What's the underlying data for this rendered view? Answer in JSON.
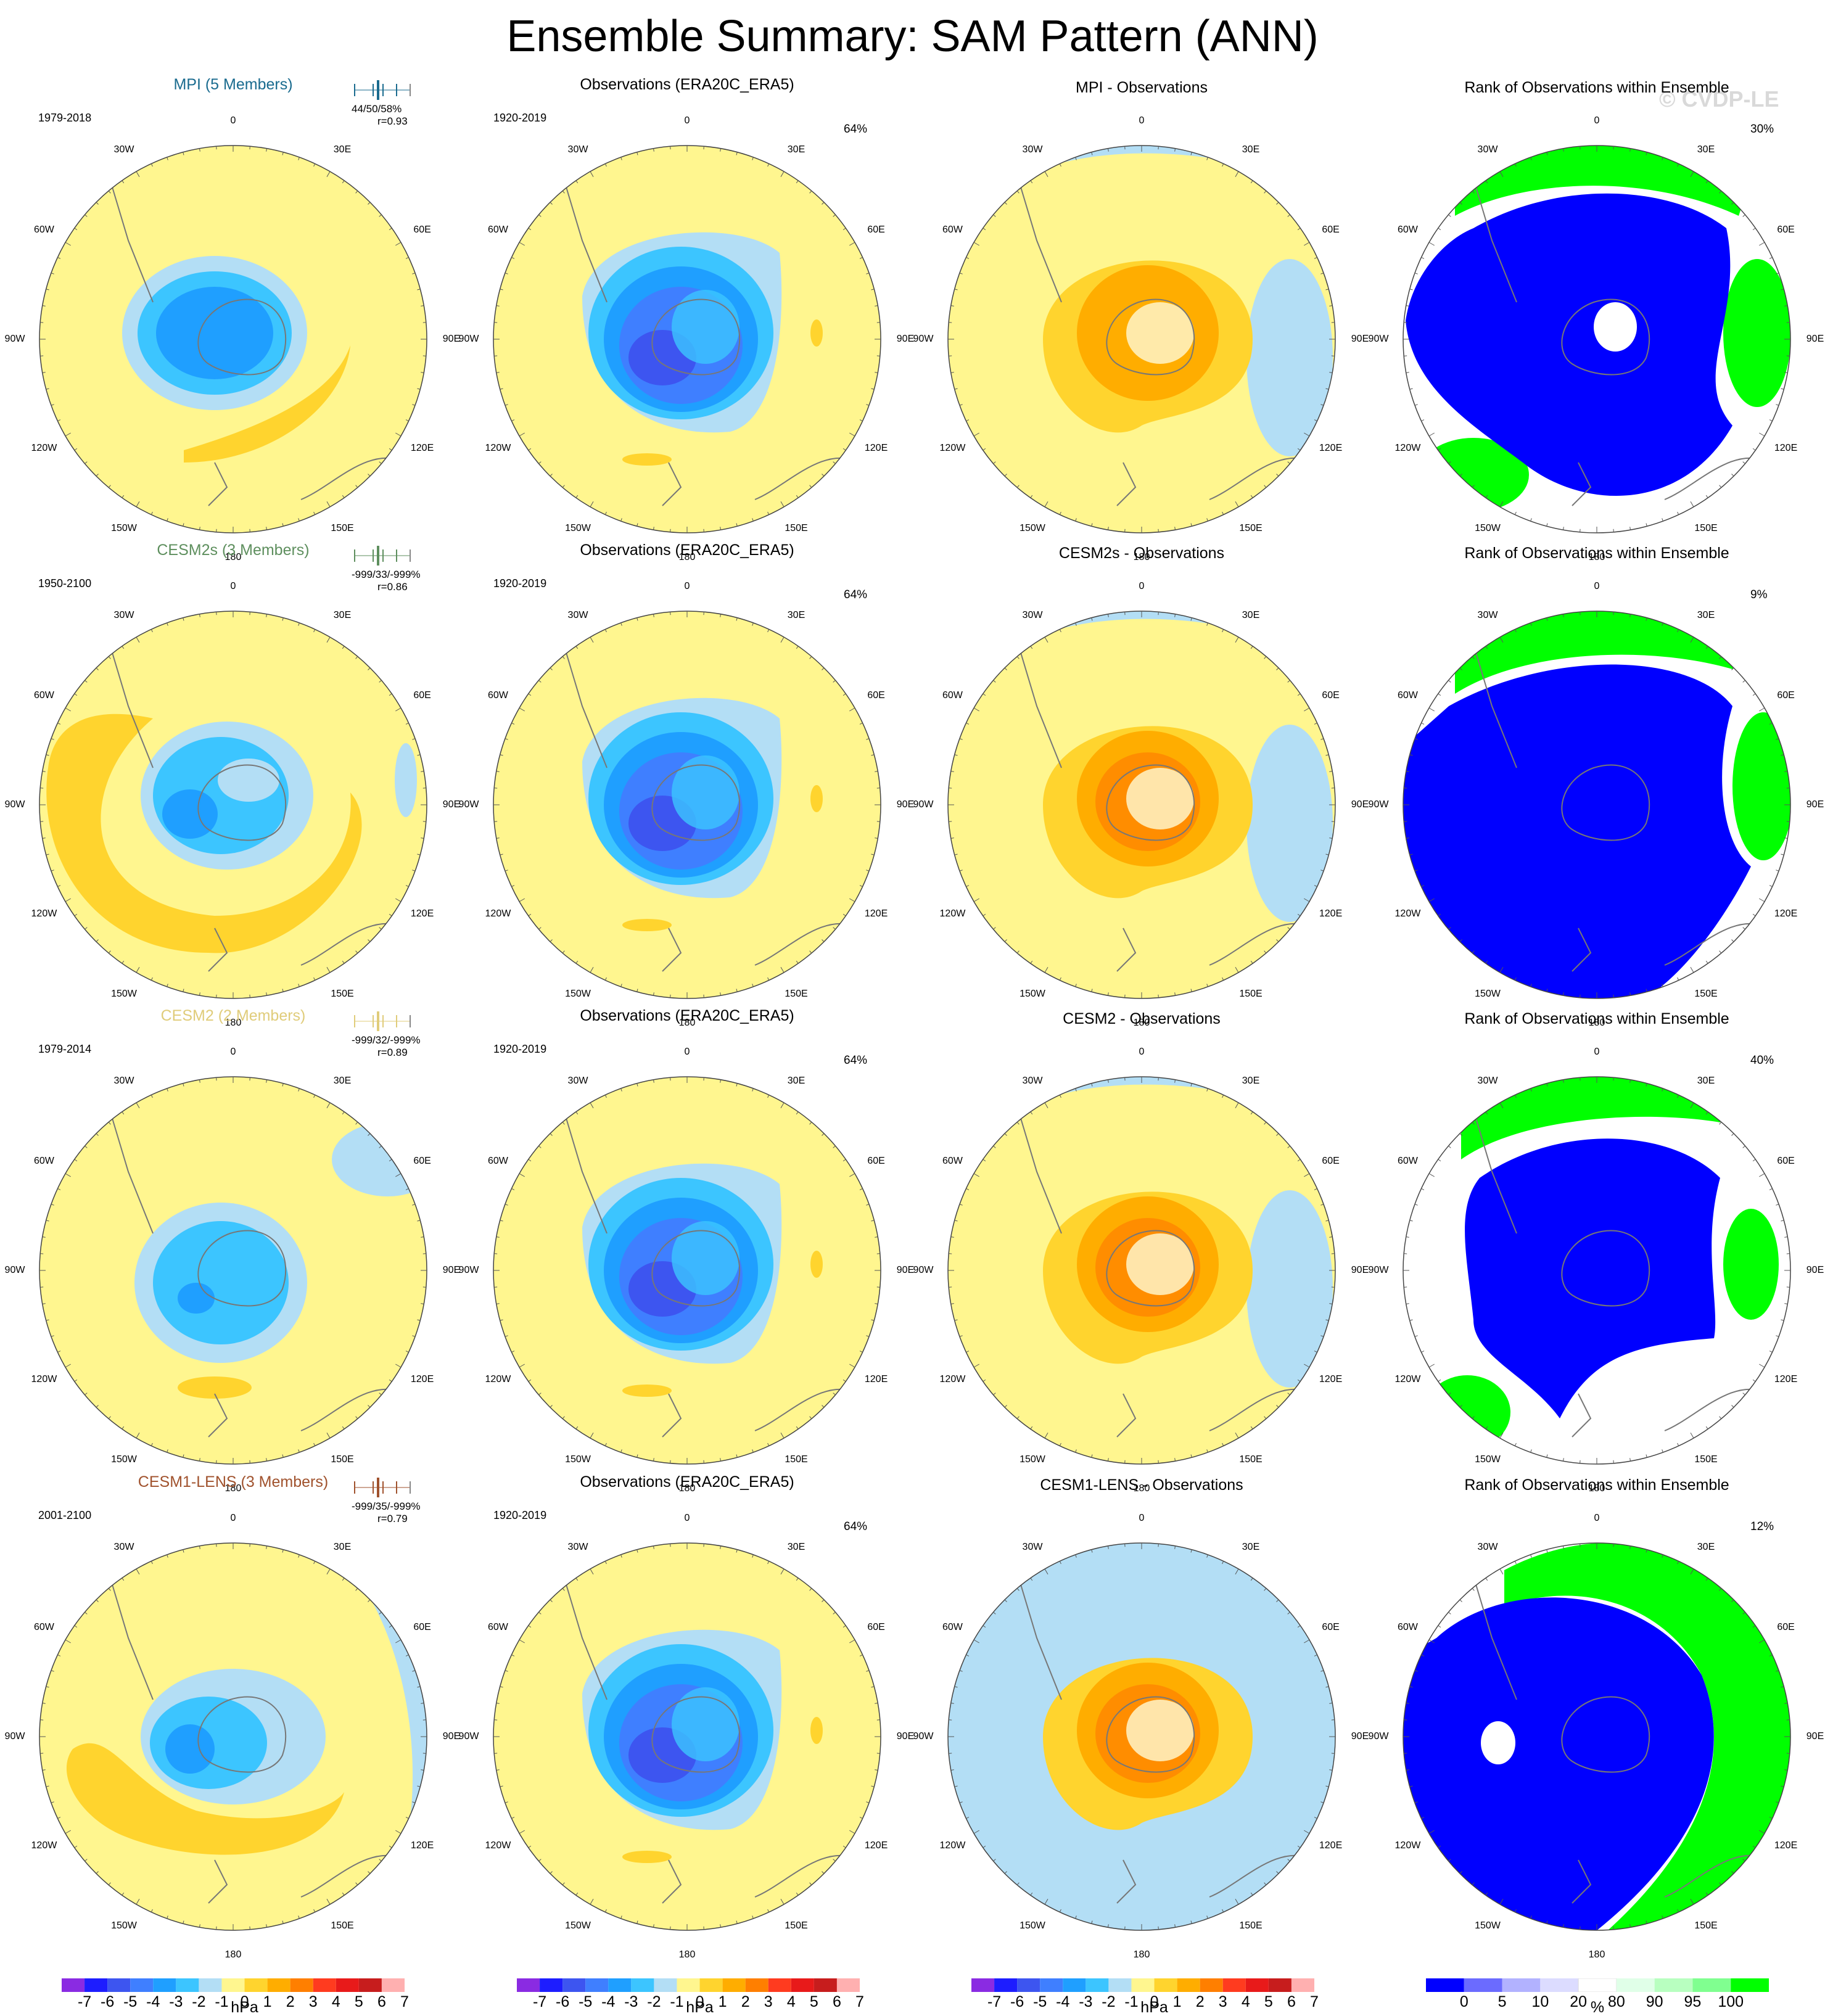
{
  "title": "Ensemble Summary: SAM Pattern (ANN)",
  "watermark": "© CVDP-LE",
  "colors": {
    "diverging": [
      "#8a2be2",
      "#1d1dff",
      "#3d55f0",
      "#3f7fff",
      "#1f9fff",
      "#3cc5ff",
      "#b3def5",
      "#fff68f",
      "#ffd42e",
      "#ffad00",
      "#ff7f00",
      "#ff3b1f",
      "#e81a1a",
      "#c71d1d",
      "#ffb0b0"
    ],
    "rank": [
      "#0000ff",
      "#6b6bff",
      "#b2b2ff",
      "#dcdcff",
      "#ffffff",
      "#e0ffe8",
      "#b8ffc0",
      "#80ff90",
      "#00ff00"
    ],
    "rows": [
      {
        "model_color": "#1a6b8f",
        "marker_color": "#1a6b8f"
      },
      {
        "model_color": "#5e8f5e",
        "marker_color": "#5e8f5e"
      },
      {
        "model_color": "#e0cc7a",
        "marker_color": "#e0cc7a"
      },
      {
        "model_color": "#a0522d",
        "marker_color": "#a0522d"
      }
    ]
  },
  "lon_labels": [
    "0",
    "30E",
    "60E",
    "90E",
    "120E",
    "150E",
    "180",
    "150W",
    "120W",
    "90W",
    "60W",
    "30W"
  ],
  "colorbars": {
    "hpa_ticks": [
      "-7",
      "-6",
      "-5",
      "-4",
      "-3",
      "-2",
      "-1",
      "0",
      "1",
      "2",
      "3",
      "4",
      "5",
      "6",
      "7"
    ],
    "hpa_unit": "hPa",
    "rank_ticks": [
      "0",
      "5",
      "10",
      "20",
      "80",
      "90",
      "95",
      "100"
    ],
    "rank_unit": "%"
  },
  "rows": [
    {
      "model_title": "MPI (5 Members)",
      "model_period": "1979-2018",
      "model_stats": "44/50/58%",
      "model_r": "r=0.93",
      "obs_title": "Observations (ERA20C_ERA5)",
      "obs_period": "1920-2019",
      "obs_pct": "64%",
      "diff_title": "MPI - Observations",
      "rank_title": "Rank of Observations within Ensemble",
      "rank_pct": "30%"
    },
    {
      "model_title": "CESM2s (3 Members)",
      "model_period": "1950-2100",
      "model_stats": "-999/33/-999%",
      "model_r": "r=0.86",
      "obs_title": "Observations (ERA20C_ERA5)",
      "obs_period": "1920-2019",
      "obs_pct": "64%",
      "diff_title": "CESM2s - Observations",
      "rank_title": "Rank of Observations within Ensemble",
      "rank_pct": "9%"
    },
    {
      "model_title": "CESM2 (2 Members)",
      "model_period": "1979-2014",
      "model_stats": "-999/32/-999%",
      "model_r": "r=0.89",
      "obs_title": "Observations (ERA20C_ERA5)",
      "obs_period": "1920-2019",
      "obs_pct": "64%",
      "diff_title": "CESM2 - Observations",
      "rank_title": "Rank of Observations within Ensemble",
      "rank_pct": "40%"
    },
    {
      "model_title": "CESM1-LENS (3 Members)",
      "model_period": "2001-2100",
      "model_stats": "-999/35/-999%",
      "model_r": "r=0.79",
      "obs_title": "Observations (ERA20C_ERA5)",
      "obs_period": "1920-2019",
      "obs_pct": "64%",
      "diff_title": "CESM1-LENS - Observations",
      "rank_title": "Rank of Observations within Ensemble",
      "rank_pct": "12%"
    }
  ],
  "chart_data": {
    "type": "heatmap",
    "projection": "south polar stereographic",
    "title": "Ensemble Summary: SAM Pattern (ANN)",
    "colorbar_hpa": {
      "unit": "hPa",
      "levels": [
        -7,
        -6,
        -5,
        -4,
        -3,
        -2,
        -1,
        0,
        1,
        2,
        3,
        4,
        5,
        6,
        7
      ]
    },
    "colorbar_rank": {
      "unit": "%",
      "levels": [
        0,
        5,
        10,
        20,
        80,
        90,
        95,
        100
      ]
    },
    "panels": [
      {
        "row": 1,
        "col": 1,
        "title": "MPI (5 Members)",
        "period": "1979-2018",
        "stats": "44/50/58%",
        "r": 0.93
      },
      {
        "row": 1,
        "col": 2,
        "title": "Observations (ERA20C_ERA5)",
        "period": "1920-2019",
        "pct": "64%"
      },
      {
        "row": 1,
        "col": 3,
        "title": "MPI - Observations"
      },
      {
        "row": 1,
        "col": 4,
        "title": "Rank of Observations within Ensemble",
        "pct": "30%"
      },
      {
        "row": 2,
        "col": 1,
        "title": "CESM2s (3 Members)",
        "period": "1950-2100",
        "stats": "-999/33/-999%",
        "r": 0.86
      },
      {
        "row": 2,
        "col": 2,
        "title": "Observations (ERA20C_ERA5)",
        "period": "1920-2019",
        "pct": "64%"
      },
      {
        "row": 2,
        "col": 3,
        "title": "CESM2s - Observations"
      },
      {
        "row": 2,
        "col": 4,
        "title": "Rank of Observations within Ensemble",
        "pct": "9%"
      },
      {
        "row": 3,
        "col": 1,
        "title": "CESM2 (2 Members)",
        "period": "1979-2014",
        "stats": "-999/32/-999%",
        "r": 0.89
      },
      {
        "row": 3,
        "col": 2,
        "title": "Observations (ERA20C_ERA5)",
        "period": "1920-2019",
        "pct": "64%"
      },
      {
        "row": 3,
        "col": 3,
        "title": "CESM2 - Observations"
      },
      {
        "row": 3,
        "col": 4,
        "title": "Rank of Observations within Ensemble",
        "pct": "40%"
      },
      {
        "row": 4,
        "col": 1,
        "title": "CESM1-LENS (3 Members)",
        "period": "2001-2100",
        "stats": "-999/35/-999%",
        "r": 0.79
      },
      {
        "row": 4,
        "col": 2,
        "title": "Observations (ERA20C_ERA5)",
        "period": "1920-2019",
        "pct": "64%"
      },
      {
        "row": 4,
        "col": 3,
        "title": "CESM1-LENS - Observations"
      },
      {
        "row": 4,
        "col": 4,
        "title": "Rank of Observations within Ensemble",
        "pct": "12%"
      }
    ]
  }
}
